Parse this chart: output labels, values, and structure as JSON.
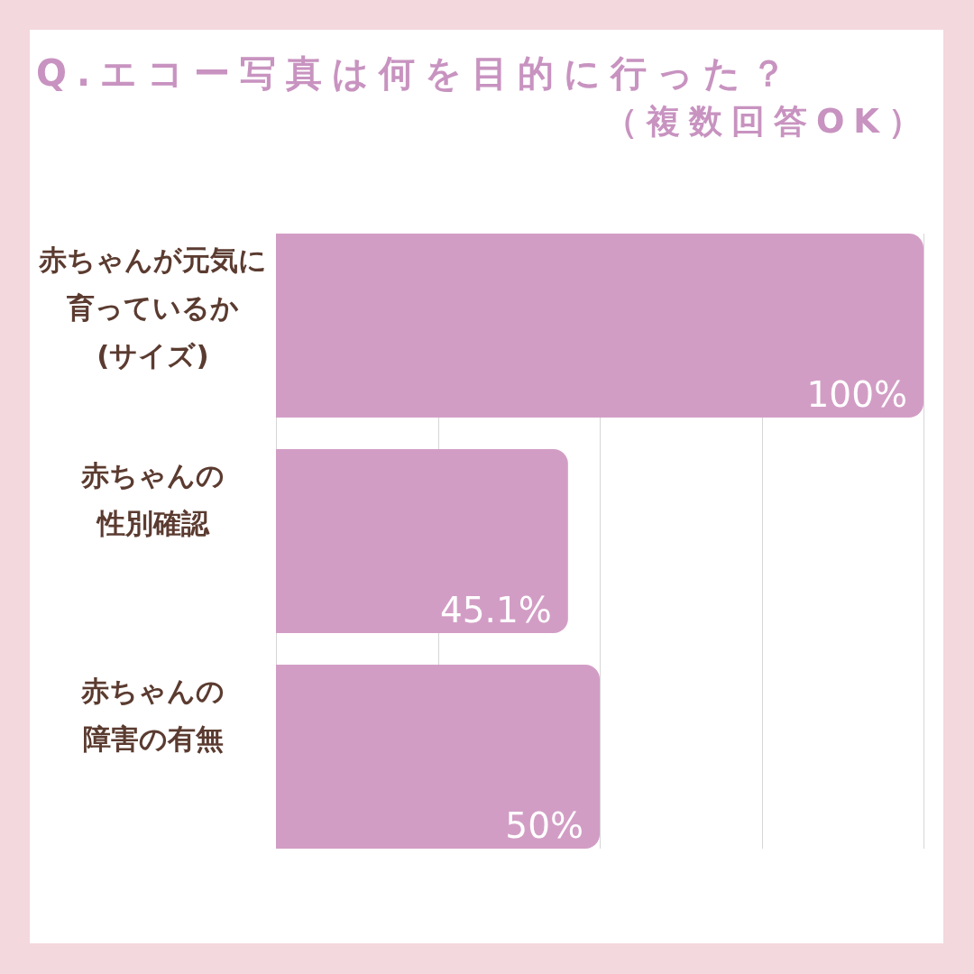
{
  "chart_data": {
    "type": "bar",
    "orientation": "horizontal",
    "title": "Q.エコー写真は何を目的に行った？",
    "subtitle": "（複数回答OK）",
    "categories": [
      "赤ちゃんが元気に育っているか(サイズ)",
      "赤ちゃんの性別確認",
      "赤ちゃんの障害の有無"
    ],
    "values": [
      100,
      45.1,
      50
    ],
    "value_labels": [
      "100%",
      "45.1%",
      "50%"
    ],
    "color": "#d29dc5",
    "xlim": [
      0,
      100
    ],
    "xticks": [
      {
        "value": 0,
        "label": null
      },
      {
        "value": 25,
        "label": null
      },
      {
        "value": 50,
        "label": null
      },
      {
        "value": 75,
        "label": null
      },
      {
        "value": 100,
        "label": null
      }
    ],
    "grid": "x",
    "tick_labels": "y"
  }
}
